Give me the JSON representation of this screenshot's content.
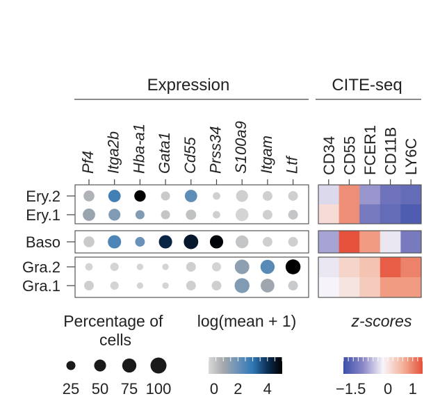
{
  "chart_data": [
    {
      "type": "dotplot",
      "title": "Expression",
      "genes": [
        "Pf4",
        "Itga2b",
        "Hba-a1",
        "Gata1",
        "Cd55",
        "Prss34",
        "S100a9",
        "Itgam",
        "Ltf"
      ],
      "rows": [
        "Ery.2",
        "Ery.1",
        "Baso",
        "Gra.2",
        "Gra.1"
      ],
      "groups": [
        [
          "Ery.2",
          "Ery.1"
        ],
        [
          "Baso"
        ],
        [
          "Gra.2",
          "Gra.1"
        ]
      ],
      "percent": [
        [
          40,
          55,
          45,
          25,
          55,
          15,
          50,
          30,
          30
        ],
        [
          55,
          50,
          25,
          25,
          35,
          15,
          60,
          30,
          30
        ],
        [
          40,
          65,
          30,
          65,
          80,
          65,
          60,
          30,
          30
        ],
        [
          15,
          20,
          10,
          10,
          30,
          25,
          80,
          75,
          85
        ],
        [
          30,
          20,
          10,
          10,
          30,
          30,
          85,
          70,
          30
        ]
      ],
      "log_mean": [
        [
          0.8,
          2.7,
          5.0,
          0.3,
          2.2,
          0.2,
          0.2,
          0.2,
          0.2
        ],
        [
          1.2,
          1.6,
          1.6,
          0.4,
          0.5,
          0.2,
          0.1,
          0.2,
          0.4
        ],
        [
          0.3,
          2.5,
          2.0,
          4.2,
          4.5,
          4.9,
          0.4,
          0.2,
          0.2
        ],
        [
          0.1,
          0.1,
          0.1,
          0.1,
          0.2,
          0.1,
          1.4,
          2.3,
          5.0
        ],
        [
          0.2,
          0.1,
          0.1,
          0.1,
          0.2,
          0.2,
          1.6,
          1.1,
          0.3
        ]
      ],
      "size_legend": {
        "title": "Percentage of cells",
        "values": [
          25,
          50,
          75,
          100
        ]
      },
      "color_legend": {
        "title": "log(mean + 1)",
        "range": [
          0,
          5
        ],
        "ticks": [
          0,
          2,
          4
        ],
        "colors": [
          "#d9d9d9",
          "#a5a8ad",
          "#6a92b8",
          "#2f77b4",
          "#0c2e55",
          "#000000"
        ]
      }
    },
    {
      "type": "heatmap",
      "title": "CITE-seq",
      "markers": [
        "CD34",
        "CD55",
        "FCER1",
        "CD11B",
        "LY6C"
      ],
      "rows": [
        "Ery.2",
        "Ery.1",
        "Baso",
        "Gra.2",
        "Gra.1"
      ],
      "values": [
        [
          -0.4,
          0.9,
          -0.9,
          -1.3,
          -1.4
        ],
        [
          0.1,
          0.9,
          -1.2,
          -1.4,
          -1.6
        ],
        [
          -0.8,
          1.4,
          0.8,
          -0.3,
          -1.2
        ],
        [
          -0.3,
          0.2,
          0.4,
          1.3,
          1.0
        ],
        [
          -0.2,
          0.0,
          0.3,
          0.8,
          0.8
        ]
      ],
      "color_legend": {
        "title": "z-scores",
        "range": [
          -1.8,
          1.4
        ],
        "ticks": [
          -1.5,
          0,
          1
        ],
        "tick_labels": [
          "−1.5",
          "0",
          "1"
        ],
        "colors": [
          "#3b4fa8",
          "#8c88c7",
          "#f7f4f9",
          "#f3b39a",
          "#e5513a"
        ]
      }
    }
  ],
  "colors": {
    "panel_border": "#555555",
    "axis_line": "#444444"
  }
}
